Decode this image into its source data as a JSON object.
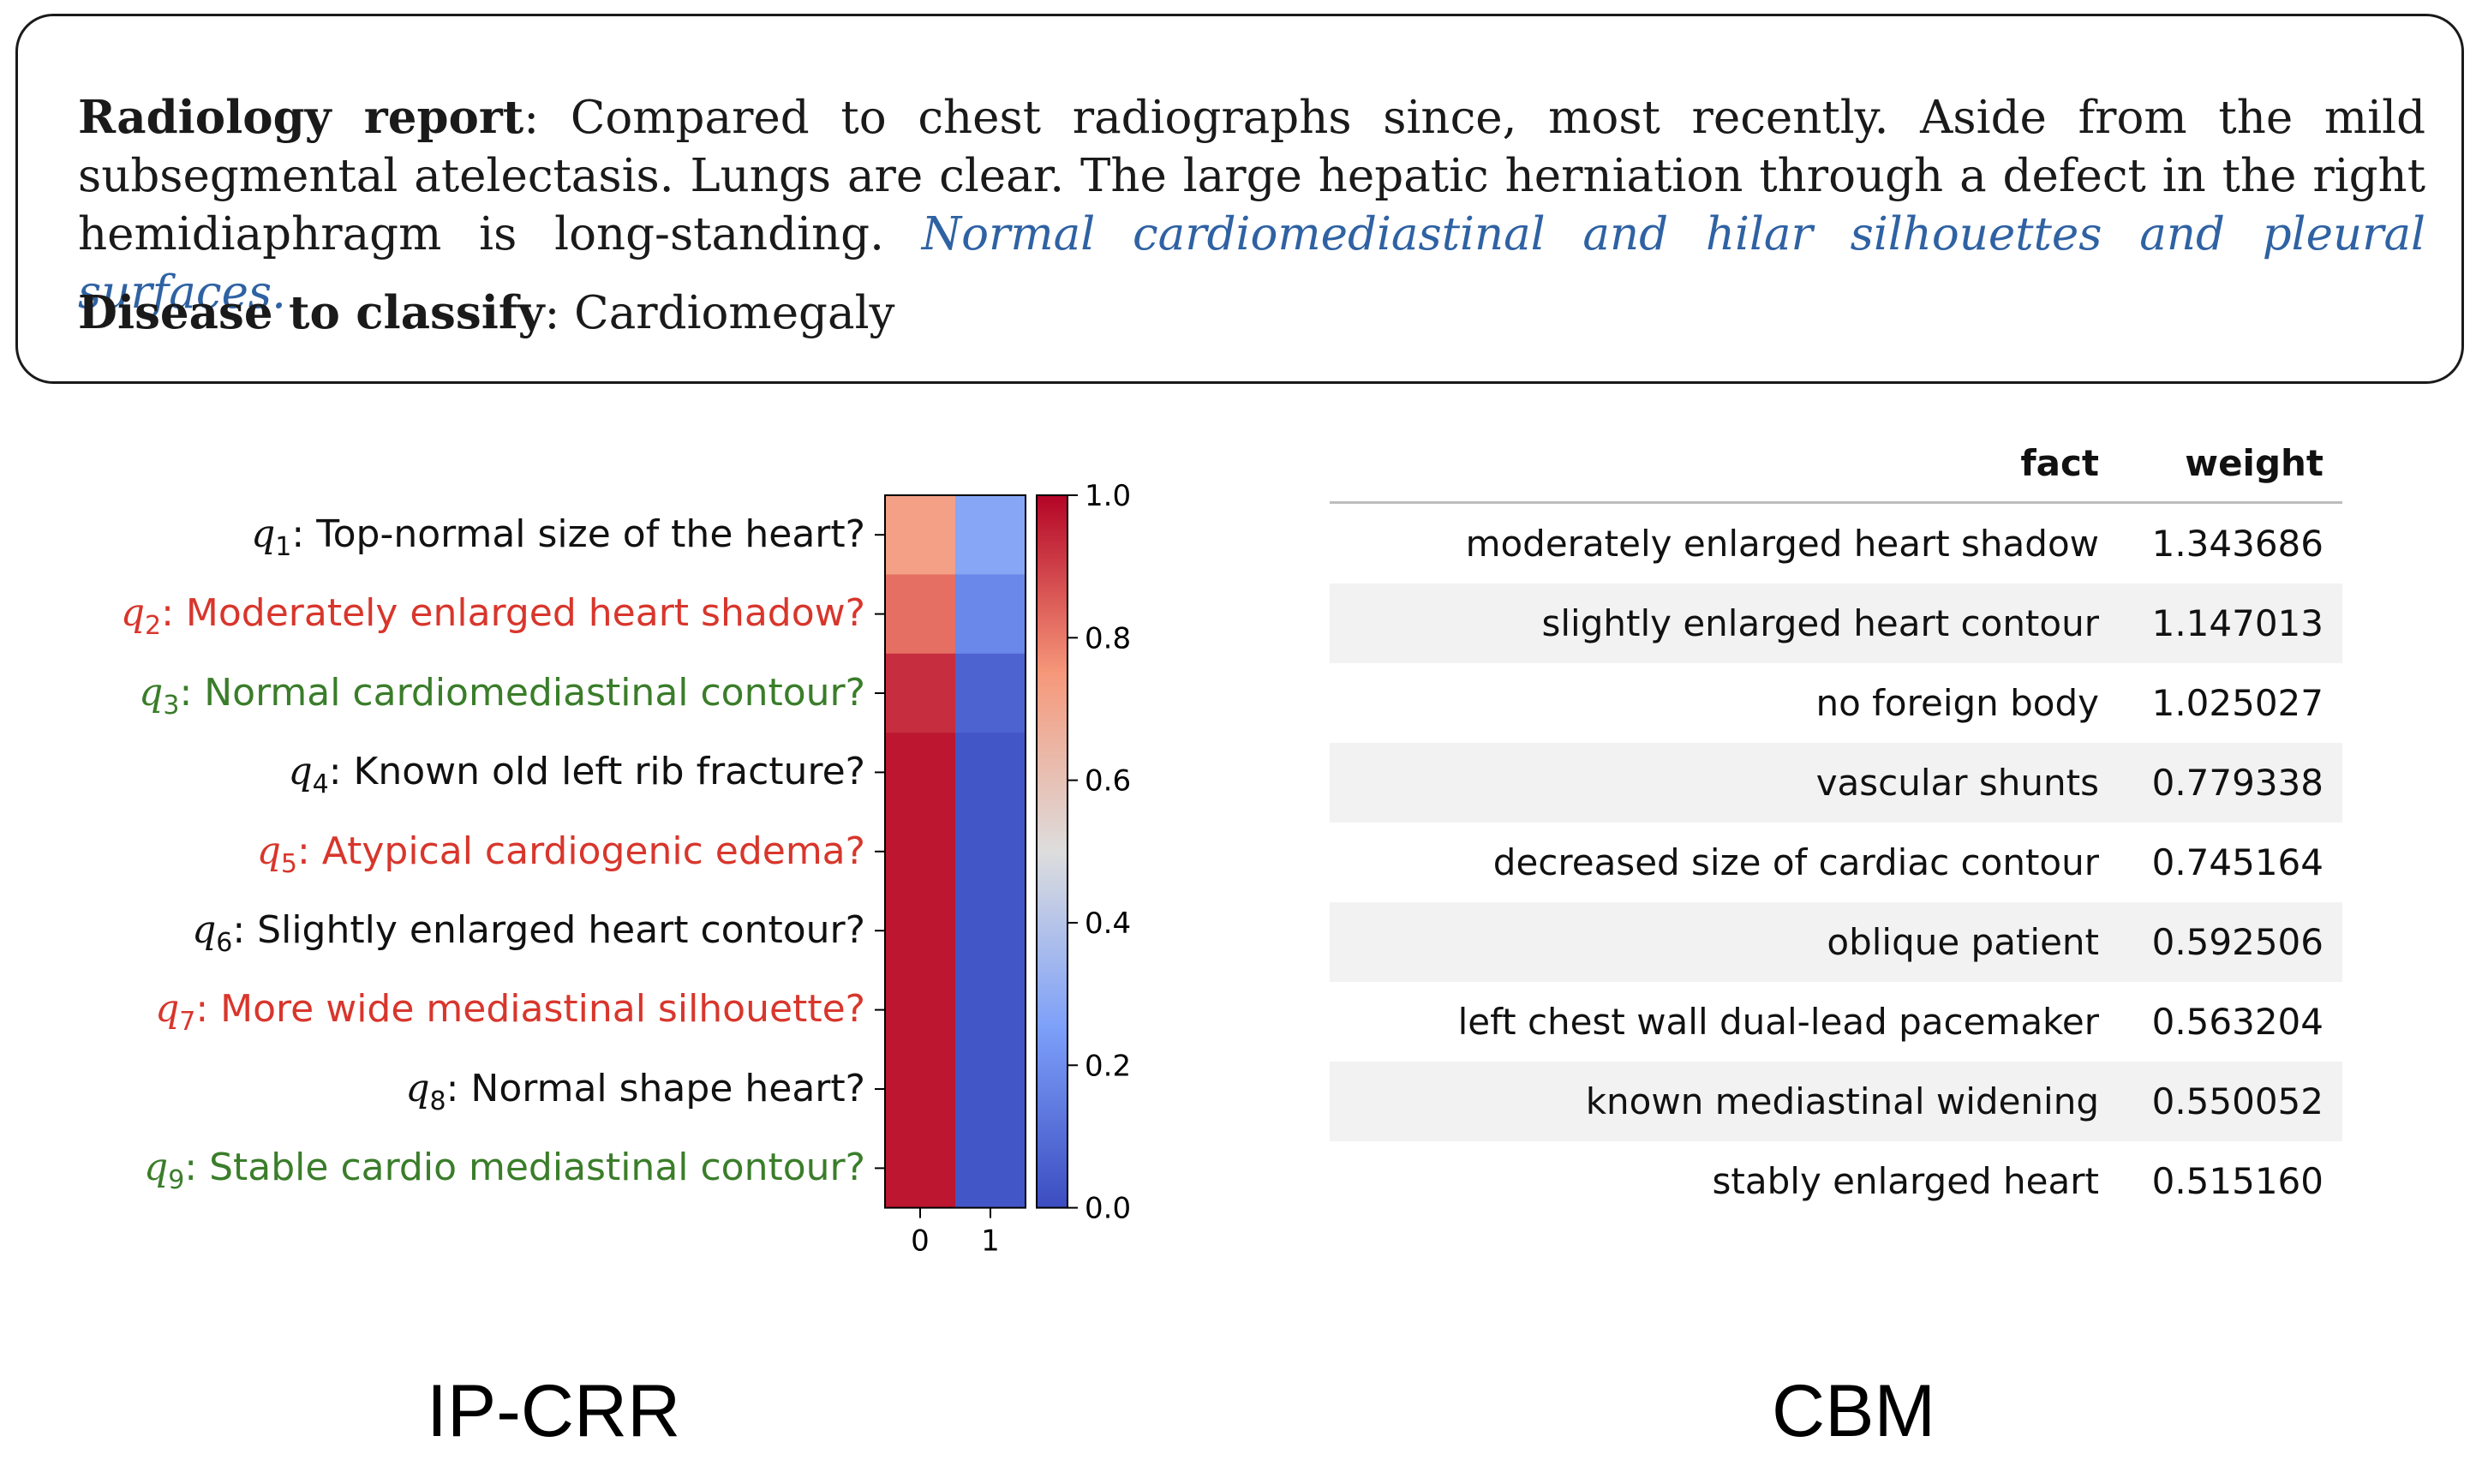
{
  "report": {
    "report_label": "Radiology report",
    "report_sep": ":",
    "report_body": " Compared to chest radiographs since, most recently. Aside from the mild subsegmental atelectasis. Lungs are clear. The large hepatic herniation through a defect in the right hemidiaphragm is long-standing. ",
    "report_highlight": "Normal cardiomediastinal and hilar silhouettes and pleural surfaces.",
    "highlight_color": "#2f62a3",
    "disease_label": "Disease to classify",
    "disease_sep": ":",
    "disease_value": " Cardiomegaly"
  },
  "questions": [
    {
      "var": "q",
      "sub": "1",
      "text": ": Top-normal size of the heart?",
      "color": "black"
    },
    {
      "var": "q",
      "sub": "2",
      "text": ": Moderately enlarged heart shadow?",
      "color": "red"
    },
    {
      "var": "q",
      "sub": "3",
      "text": ": Normal cardiomediastinal contour?",
      "color": "green"
    },
    {
      "var": "q",
      "sub": "4",
      "text": ": Known old left rib fracture?",
      "color": "black"
    },
    {
      "var": "q",
      "sub": "5",
      "text": ": Atypical cardiogenic edema?",
      "color": "red"
    },
    {
      "var": "q",
      "sub": "6",
      "text": ": Slightly enlarged heart contour?",
      "color": "black"
    },
    {
      "var": "q",
      "sub": "7",
      "text": ": More wide mediastinal silhouette?",
      "color": "red"
    },
    {
      "var": "q",
      "sub": "8",
      "text": ": Normal shape heart?",
      "color": "black"
    },
    {
      "var": "q",
      "sub": "9",
      "text": ": Stable cardio mediastinal contour?",
      "color": "green"
    }
  ],
  "chart_data": [
    {
      "type": "heatmap",
      "colormap": "coolwarm",
      "x_ticks": [
        "0",
        "1"
      ],
      "y_labels": [
        "q1",
        "q2",
        "q3",
        "q4",
        "q5",
        "q6",
        "q7",
        "q8",
        "q9"
      ],
      "values": [
        [
          0.72,
          0.28
        ],
        [
          0.82,
          0.18
        ],
        [
          0.93,
          0.07
        ],
        [
          0.97,
          0.03
        ],
        [
          0.97,
          0.03
        ],
        [
          0.97,
          0.03
        ],
        [
          0.97,
          0.03
        ],
        [
          0.97,
          0.03
        ],
        [
          0.97,
          0.03
        ]
      ],
      "colorbar": {
        "range": [
          0,
          1
        ],
        "ticks": [
          "0.0",
          "0.2",
          "0.4",
          "0.6",
          "0.8",
          "1.0"
        ]
      },
      "caption": "IP-CRR"
    },
    {
      "type": "table",
      "columns": [
        "fact",
        "weight"
      ],
      "rows": [
        [
          "moderately enlarged heart shadow",
          "1.343686"
        ],
        [
          "slightly enlarged heart contour",
          "1.147013"
        ],
        [
          "no foreign body",
          "1.025027"
        ],
        [
          "vascular shunts",
          "0.779338"
        ],
        [
          "decreased size of cardiac contour",
          "0.745164"
        ],
        [
          "oblique patient",
          "0.592506"
        ],
        [
          "left chest wall dual-lead pacemaker",
          "0.563204"
        ],
        [
          "known mediastinal widening",
          "0.550052"
        ],
        [
          "stably enlarged heart",
          "0.515160"
        ]
      ],
      "caption": "CBM"
    }
  ]
}
